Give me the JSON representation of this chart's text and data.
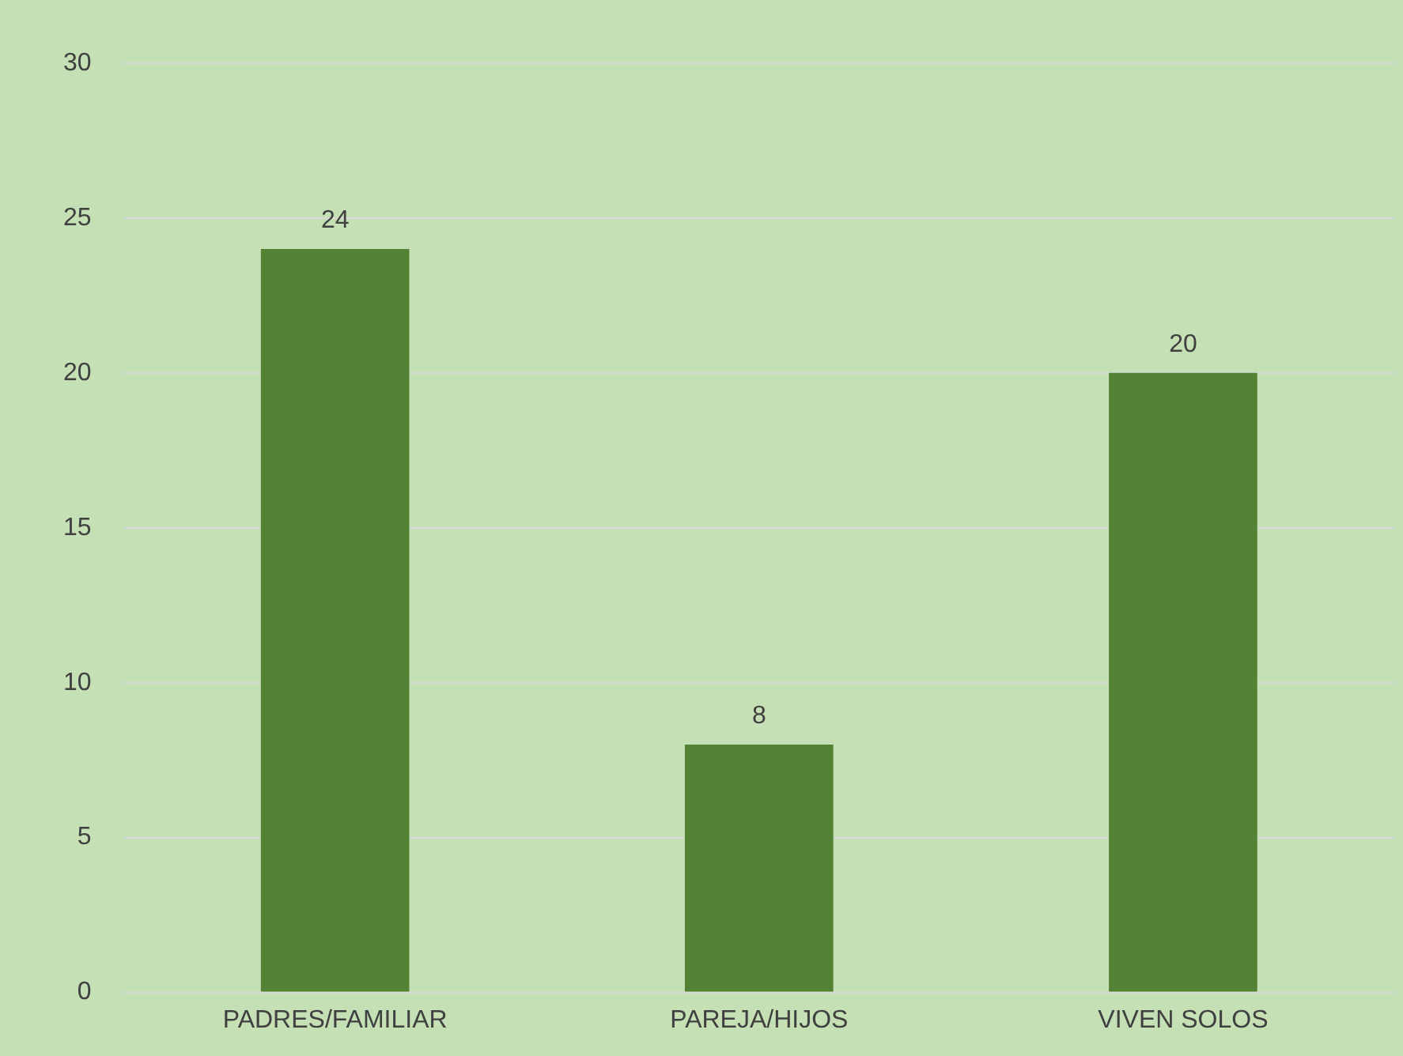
{
  "chart_data": {
    "type": "bar",
    "categories": [
      "PADRES/FAMILIAR",
      "PAREJA/HIJOS",
      "VIVEN SOLOS"
    ],
    "values": [
      24,
      8,
      20
    ],
    "color": "#548235",
    "ylim": [
      0,
      30
    ],
    "yticks": [
      0,
      5,
      10,
      15,
      20,
      25,
      30
    ],
    "grid": "y",
    "data_labels": true,
    "legend": false
  }
}
